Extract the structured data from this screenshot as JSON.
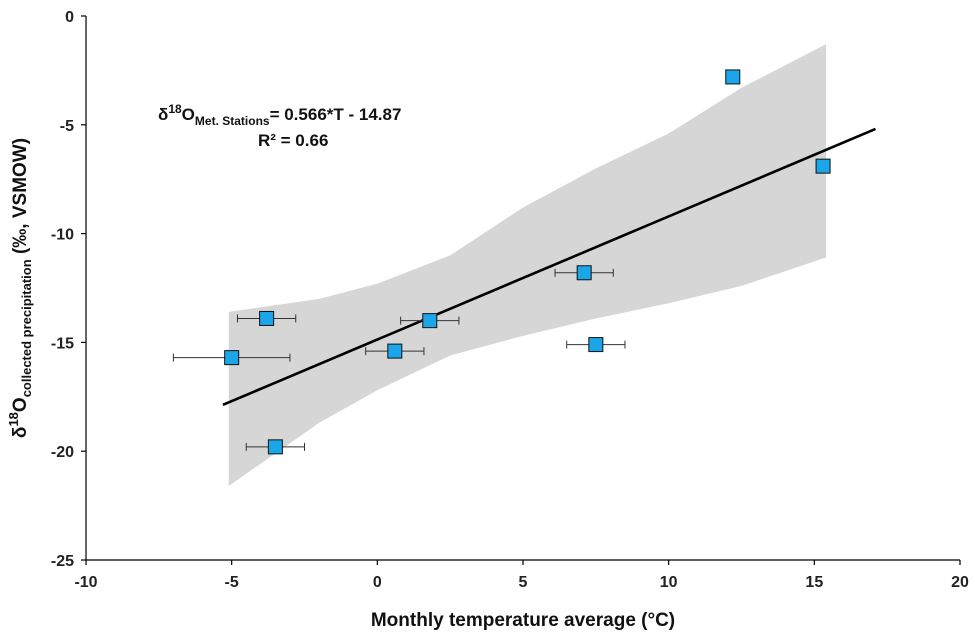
{
  "chart_data": {
    "type": "scatter",
    "xlabel": "Monthly temperature average (°C)",
    "ylabel": {
      "prefix": "δ",
      "sup": "18",
      "main": "O",
      "sub": "collected precipitation",
      "suffix": " (‰, VSMOW)"
    },
    "xlim": [
      -10,
      20
    ],
    "ylim": [
      -25,
      0
    ],
    "x_ticks": [
      -10,
      -5,
      0,
      5,
      10,
      15,
      20
    ],
    "y_ticks": [
      0,
      -5,
      -10,
      -15,
      -20,
      -25
    ],
    "x_tick_labels": [
      "-10",
      "-5",
      "0",
      "5",
      "10",
      "15",
      "20"
    ],
    "y_tick_labels": [
      "0",
      "-5",
      "-10",
      "-15",
      "-20",
      "-25"
    ],
    "grid": false,
    "points": [
      {
        "x": -5.0,
        "y": -15.7,
        "xerr": 2.0
      },
      {
        "x": -3.8,
        "y": -13.9,
        "xerr": 1.0
      },
      {
        "x": -3.5,
        "y": -19.8,
        "xerr": 1.0
      },
      {
        "x": 0.6,
        "y": -15.4,
        "xerr": 1.0
      },
      {
        "x": 1.8,
        "y": -14.0,
        "xerr": 1.0
      },
      {
        "x": 7.1,
        "y": -11.8,
        "xerr": 1.0
      },
      {
        "x": 7.5,
        "y": -15.1,
        "xerr": 1.0
      },
      {
        "x": 12.2,
        "y": -2.8,
        "xerr": 0
      },
      {
        "x": 15.3,
        "y": -6.9,
        "xerr": 0
      }
    ],
    "regression": {
      "slope": 0.566,
      "intercept": -14.87,
      "x_range": [
        -5.3,
        17.1
      ],
      "equation": {
        "prefix": "δ",
        "sup": "18",
        "main": "O",
        "sub": "Met. Stations",
        "rhs": "= 0.566*T - 14.87"
      },
      "r2_label": "R² = 0.66"
    },
    "confidence_band": {
      "x": [
        -5.1,
        -2,
        0,
        2.5,
        5,
        7.5,
        10,
        12.5,
        15.4
      ],
      "upper": [
        -13.6,
        -13.0,
        -12.3,
        -11.0,
        -8.8,
        -7.0,
        -5.4,
        -3.3,
        -1.3
      ],
      "lower": [
        -21.6,
        -18.7,
        -17.2,
        -15.6,
        -14.7,
        -13.9,
        -13.2,
        -12.4,
        -11.1
      ]
    },
    "colors": {
      "marker": "#1aa6e8",
      "marker_edge": "#111111",
      "band": "#d6d6d6",
      "line": "#000000"
    }
  }
}
